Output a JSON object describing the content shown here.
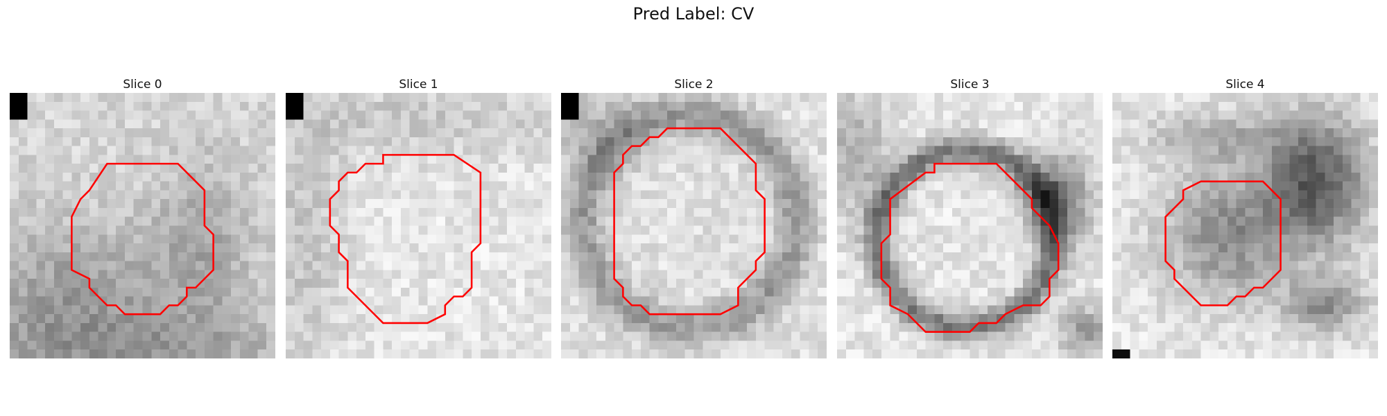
{
  "figure": {
    "title": "Pred Label: CV"
  },
  "panels": [
    {
      "title": "Slice 0",
      "corner_block": true,
      "contour_color": "#ff0000",
      "contour": [
        [
          11,
          8
        ],
        [
          19,
          8
        ],
        [
          22,
          11
        ],
        [
          22,
          15
        ],
        [
          23,
          16
        ],
        [
          23,
          20
        ],
        [
          21,
          22
        ],
        [
          20,
          22
        ],
        [
          20,
          23
        ],
        [
          19,
          24
        ],
        [
          18,
          24
        ],
        [
          17,
          25
        ],
        [
          13,
          25
        ],
        [
          12,
          24
        ],
        [
          11,
          24
        ],
        [
          9,
          22
        ],
        [
          9,
          21
        ],
        [
          7,
          20
        ],
        [
          7,
          14
        ],
        [
          8,
          12
        ],
        [
          9,
          11
        ]
      ]
    },
    {
      "title": "Slice 1",
      "corner_block": true,
      "contour_color": "#ff0000",
      "contour": [
        [
          11,
          7
        ],
        [
          19,
          7
        ],
        [
          22,
          9
        ],
        [
          22,
          17
        ],
        [
          21,
          18
        ],
        [
          21,
          22
        ],
        [
          20,
          23
        ],
        [
          19,
          23
        ],
        [
          18,
          24
        ],
        [
          18,
          25
        ],
        [
          16,
          26
        ],
        [
          11,
          26
        ],
        [
          7,
          22
        ],
        [
          7,
          19
        ],
        [
          6,
          18
        ],
        [
          6,
          16
        ],
        [
          5,
          15
        ],
        [
          5,
          12
        ],
        [
          6,
          11
        ],
        [
          6,
          10
        ],
        [
          7,
          9
        ],
        [
          8,
          9
        ],
        [
          9,
          8
        ],
        [
          11,
          8
        ]
      ]
    },
    {
      "title": "Slice 2",
      "corner_block": true,
      "contour_color": "#ff0000",
      "contour": [
        [
          12,
          4
        ],
        [
          18,
          4
        ],
        [
          22,
          8
        ],
        [
          22,
          11
        ],
        [
          23,
          12
        ],
        [
          23,
          18
        ],
        [
          22,
          19
        ],
        [
          22,
          20
        ],
        [
          20,
          22
        ],
        [
          20,
          24
        ],
        [
          18,
          25
        ],
        [
          10,
          25
        ],
        [
          9,
          24
        ],
        [
          8,
          24
        ],
        [
          7,
          23
        ],
        [
          7,
          22
        ],
        [
          6,
          21
        ],
        [
          6,
          9
        ],
        [
          7,
          8
        ],
        [
          7,
          7
        ],
        [
          8,
          6
        ],
        [
          9,
          6
        ],
        [
          10,
          5
        ],
        [
          11,
          5
        ]
      ]
    },
    {
      "title": "Slice 3",
      "corner_block": false,
      "contour_color": "#ff0000",
      "contour": [
        [
          11,
          8
        ],
        [
          18,
          8
        ],
        [
          22,
          12
        ],
        [
          22,
          13
        ],
        [
          24,
          15
        ],
        [
          25,
          17
        ],
        [
          25,
          20
        ],
        [
          24,
          21
        ],
        [
          24,
          23
        ],
        [
          23,
          24
        ],
        [
          21,
          24
        ],
        [
          19,
          25
        ],
        [
          18,
          26
        ],
        [
          16,
          26
        ],
        [
          15,
          27
        ],
        [
          10,
          27
        ],
        [
          9,
          26
        ],
        [
          8,
          25
        ],
        [
          6,
          24
        ],
        [
          6,
          22
        ],
        [
          5,
          21
        ],
        [
          5,
          17
        ],
        [
          6,
          16
        ],
        [
          6,
          12
        ],
        [
          10,
          9
        ],
        [
          11,
          9
        ]
      ]
    },
    {
      "title": "Slice 4",
      "corner_block": false,
      "contour_color": "#ff0000",
      "contour": [
        [
          11,
          10
        ],
        [
          17,
          10
        ],
        [
          19,
          12
        ],
        [
          19,
          20
        ],
        [
          18,
          21
        ],
        [
          17,
          22
        ],
        [
          16,
          22
        ],
        [
          15,
          23
        ],
        [
          14,
          23
        ],
        [
          13,
          24
        ],
        [
          10,
          24
        ],
        [
          7,
          21
        ],
        [
          7,
          20
        ],
        [
          6,
          19
        ],
        [
          6,
          14
        ],
        [
          8,
          12
        ],
        [
          8,
          11
        ],
        [
          10,
          10
        ]
      ]
    }
  ]
}
